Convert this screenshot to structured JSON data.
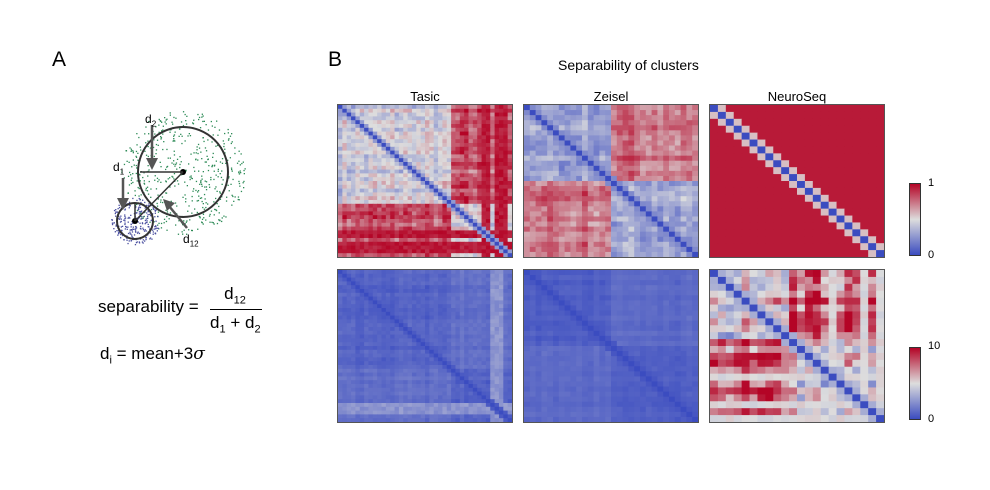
{
  "panel_a": {
    "letter": "A",
    "labels": {
      "d1": "d",
      "d1_sub": "1",
      "d2": "d",
      "d2_sub": "2",
      "d12": "d",
      "d12_sub": "12"
    },
    "formula1": {
      "lhs": "separability",
      "eq": "=",
      "num": "d",
      "num_sub": "12",
      "den_a": "d",
      "den_a_sub": "1",
      "plus": "+",
      "den_b": "d",
      "den_b_sub": "2"
    },
    "formula2": {
      "lhs": "d",
      "lhs_sub": "i",
      "rhs": "= mean+3",
      "sigma": "σ"
    },
    "colors": {
      "small_cluster": "#4a4fa0",
      "large_cluster": "#2e8b57",
      "circle": "#333333"
    }
  },
  "panel_b": {
    "letter": "B",
    "title": "Separability of clusters",
    "columns": [
      "Tasic",
      "Zeisel",
      "NeuroSeq"
    ],
    "colorbars": [
      {
        "max": "1",
        "min": "0"
      },
      {
        "max": "10",
        "min": "0"
      }
    ],
    "colormap": {
      "low": "#3b4cc0",
      "mid": "#dddddd",
      "high": "#b40426"
    },
    "matrices": [
      {
        "row": 0,
        "col": 0,
        "name": "Tasic",
        "n": 40,
        "block": 26,
        "inner": 0.45,
        "outer": 0.8,
        "stripes": [
          33,
          34,
          36,
          37,
          38
        ],
        "stripeval": 0.95,
        "noise": 0.18
      },
      {
        "row": 0,
        "col": 1,
        "name": "Zeisel",
        "n": 30,
        "block": 15,
        "inner": 0.35,
        "outer": 0.78,
        "stripes": [],
        "stripeval": 0.9,
        "noise": 0.15
      },
      {
        "row": 0,
        "col": 2,
        "name": "NeuroSeq",
        "n": 22,
        "block": 0,
        "inner": 0.95,
        "outer": 0.95,
        "stripes": [],
        "stripeval": 0.95,
        "noise": 0.0
      },
      {
        "row": 1,
        "col": 0,
        "name": "Tasic",
        "n": 40,
        "block": 26,
        "inner": 0.08,
        "outer": 0.12,
        "stripes": [
          35,
          36,
          37
        ],
        "stripeval": 0.25,
        "noise": 0.04
      },
      {
        "row": 1,
        "col": 1,
        "name": "Zeisel",
        "n": 30,
        "block": 15,
        "inner": 0.06,
        "outer": 0.1,
        "stripes": [],
        "stripeval": 0.15,
        "noise": 0.03
      },
      {
        "row": 1,
        "col": 2,
        "name": "NeuroSeq",
        "n": 22,
        "block": 10,
        "inner": 0.55,
        "outer": 0.85,
        "stripes": [
          15,
          19,
          21
        ],
        "stripeval": 0.5,
        "noise": 0.3
      }
    ]
  }
}
